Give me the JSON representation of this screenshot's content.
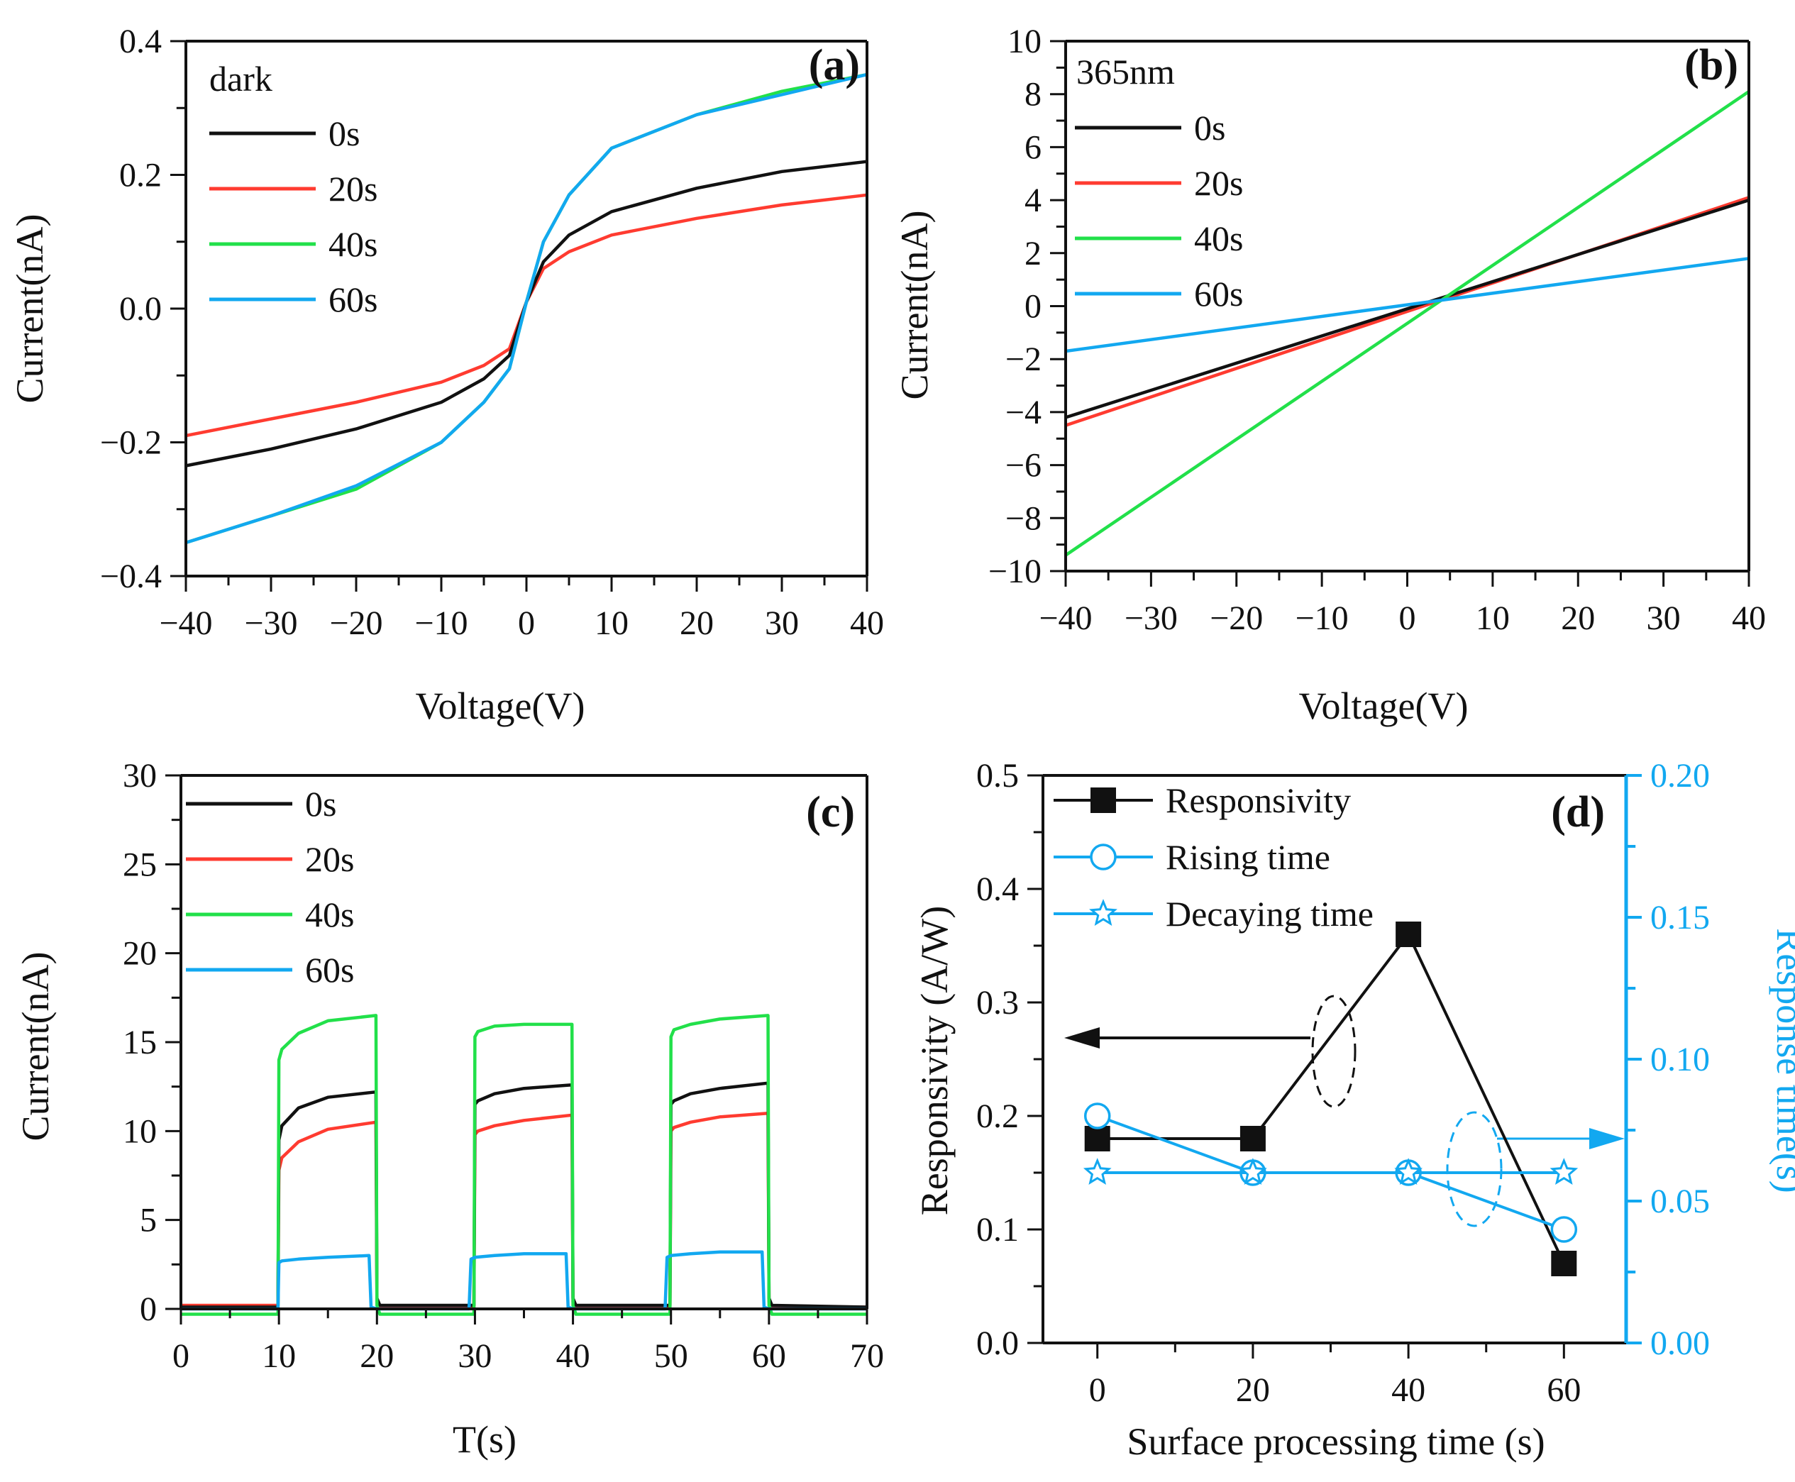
{
  "colors": {
    "0s": "#111111",
    "20s": "#ff3b30",
    "40s": "#22e04a",
    "60s": "#12a8f0",
    "axis": "#111111",
    "right_axis": "#12a8f0"
  },
  "chart_data": [
    {
      "id": "a",
      "type": "line",
      "panel_label": "(a)",
      "annotation": "dark",
      "xlabel": "Voltage(V)",
      "ylabel": "Current(nA)",
      "xlim": [
        -40,
        40
      ],
      "ylim": [
        -0.4,
        0.4
      ],
      "xticks": [
        -40,
        -30,
        -20,
        -10,
        0,
        10,
        20,
        30,
        40
      ],
      "yticks": [
        -0.4,
        -0.2,
        0.0,
        0.2,
        0.4
      ],
      "xtick_labels": [
        "−40",
        "−30",
        "−20",
        "−10",
        "0",
        "10",
        "20",
        "30",
        "40"
      ],
      "ytick_labels": [
        "−0.4",
        "−0.2",
        "0.0",
        "0.2",
        "0.4"
      ],
      "legend": [
        "0s",
        "20s",
        "40s",
        "60s"
      ],
      "series": [
        {
          "name": "0s",
          "x": [
            -40,
            -30,
            -20,
            -10,
            -5,
            -2,
            0,
            2,
            5,
            10,
            20,
            30,
            40
          ],
          "y": [
            -0.235,
            -0.21,
            -0.18,
            -0.14,
            -0.105,
            -0.07,
            0.01,
            0.07,
            0.11,
            0.145,
            0.18,
            0.205,
            0.22
          ]
        },
        {
          "name": "20s",
          "x": [
            -40,
            -30,
            -20,
            -10,
            -5,
            -2,
            0,
            2,
            5,
            10,
            20,
            30,
            40
          ],
          "y": [
            -0.19,
            -0.165,
            -0.14,
            -0.11,
            -0.085,
            -0.06,
            0.01,
            0.06,
            0.085,
            0.11,
            0.135,
            0.155,
            0.17
          ]
        },
        {
          "name": "40s",
          "x": [
            -40,
            -30,
            -20,
            -10,
            -5,
            -2,
            0,
            2,
            5,
            10,
            20,
            30,
            40
          ],
          "y": [
            -0.35,
            -0.31,
            -0.27,
            -0.2,
            -0.14,
            -0.09,
            0.01,
            0.1,
            0.17,
            0.24,
            0.29,
            0.325,
            0.35
          ]
        },
        {
          "name": "60s",
          "x": [
            -40,
            -30,
            -20,
            -10,
            -5,
            -2,
            0,
            2,
            5,
            10,
            20,
            30,
            40
          ],
          "y": [
            -0.35,
            -0.31,
            -0.265,
            -0.2,
            -0.14,
            -0.09,
            0.01,
            0.1,
            0.17,
            0.24,
            0.29,
            0.32,
            0.35
          ]
        }
      ]
    },
    {
      "id": "b",
      "type": "line",
      "panel_label": "(b)",
      "annotation": "365nm",
      "xlabel": "Voltage(V)",
      "ylabel": "Current(nA)",
      "xlim": [
        -40,
        40
      ],
      "ylim": [
        -10,
        10
      ],
      "xticks": [
        -40,
        -30,
        -20,
        -10,
        0,
        10,
        20,
        30,
        40
      ],
      "yticks": [
        -10,
        -8,
        -6,
        -4,
        -2,
        0,
        2,
        4,
        6,
        8,
        10
      ],
      "xtick_labels": [
        "−40",
        "−30",
        "−20",
        "−10",
        "0",
        "10",
        "20",
        "30",
        "40"
      ],
      "ytick_labels": [
        "−10",
        "−8",
        "−6",
        "−4",
        "−2",
        "0",
        "2",
        "4",
        "6",
        "8",
        "10"
      ],
      "legend": [
        "0s",
        "20s",
        "40s",
        "60s"
      ],
      "series": [
        {
          "name": "0s",
          "x": [
            -40,
            40
          ],
          "y": [
            -4.2,
            4.0
          ]
        },
        {
          "name": "20s",
          "x": [
            -40,
            40
          ],
          "y": [
            -4.5,
            4.1
          ]
        },
        {
          "name": "40s",
          "x": [
            -40,
            40
          ],
          "y": [
            -9.4,
            8.1
          ]
        },
        {
          "name": "60s",
          "x": [
            -40,
            40
          ],
          "y": [
            -1.7,
            1.8
          ]
        }
      ]
    },
    {
      "id": "c",
      "type": "line",
      "panel_label": "(c)",
      "xlabel": "T(s)",
      "ylabel": "Current(nA)",
      "xlim": [
        0,
        70
      ],
      "ylim": [
        0,
        30
      ],
      "xticks": [
        0,
        10,
        20,
        30,
        40,
        50,
        60,
        70
      ],
      "yticks": [
        0,
        5,
        10,
        15,
        20,
        25,
        30
      ],
      "xtick_labels": [
        "0",
        "10",
        "20",
        "30",
        "40",
        "50",
        "60",
        "70"
      ],
      "ytick_labels": [
        "0",
        "5",
        "10",
        "15",
        "20",
        "25",
        "30"
      ],
      "legend": [
        "0s",
        "20s",
        "40s",
        "60s"
      ],
      "series": [
        {
          "name": "0s",
          "x": [
            0,
            9.9,
            10,
            10.3,
            12,
            15,
            19.9,
            20,
            20.3,
            29.9,
            30,
            30.3,
            32,
            35,
            39.9,
            40,
            40.3,
            49.9,
            50,
            50.3,
            52,
            55,
            59.9,
            60,
            60.3,
            70
          ],
          "y": [
            0.1,
            0.1,
            9.5,
            10.3,
            11.3,
            11.9,
            12.2,
            0.6,
            0.2,
            0.2,
            11.5,
            11.7,
            12.1,
            12.4,
            12.6,
            0.6,
            0.2,
            0.2,
            11.5,
            11.7,
            12.1,
            12.4,
            12.7,
            0.6,
            0.2,
            0.1
          ]
        },
        {
          "name": "20s",
          "x": [
            0,
            9.9,
            10,
            10.3,
            12,
            15,
            19.9,
            20,
            20.3,
            29.9,
            30,
            30.3,
            32,
            35,
            39.9,
            40,
            40.3,
            49.9,
            50,
            50.3,
            52,
            55,
            59.9,
            60,
            60.3,
            70
          ],
          "y": [
            0.2,
            0.2,
            7.8,
            8.5,
            9.4,
            10.1,
            10.5,
            0.4,
            0.1,
            0.1,
            9.8,
            10.0,
            10.3,
            10.6,
            10.9,
            0.4,
            0.1,
            0.1,
            10.0,
            10.2,
            10.5,
            10.8,
            11.0,
            0.4,
            0.1,
            0.1
          ]
        },
        {
          "name": "40s",
          "x": [
            0,
            9.9,
            10,
            10.3,
            12,
            15,
            19.9,
            20,
            20.3,
            29.9,
            30,
            30.3,
            32,
            35,
            39.9,
            40,
            40.3,
            49.9,
            50,
            50.3,
            52,
            55,
            59.9,
            60,
            60.3,
            70
          ],
          "y": [
            -0.3,
            -0.3,
            14.0,
            14.6,
            15.5,
            16.2,
            16.5,
            0.2,
            -0.3,
            -0.3,
            15.3,
            15.6,
            15.9,
            16.0,
            16.0,
            0.2,
            -0.3,
            -0.3,
            15.3,
            15.7,
            16.0,
            16.3,
            16.5,
            0.2,
            -0.3,
            -0.3
          ]
        },
        {
          "name": "60s",
          "x": [
            0,
            9.9,
            10,
            10.3,
            12,
            15,
            19.2,
            19.4,
            20,
            29.4,
            29.6,
            30,
            32,
            35,
            39.3,
            39.5,
            40,
            49.4,
            49.6,
            50,
            52,
            55,
            59.3,
            59.5,
            60,
            70
          ],
          "y": [
            0.0,
            0.0,
            2.6,
            2.7,
            2.8,
            2.9,
            3.0,
            0.1,
            0.0,
            0.0,
            2.8,
            2.9,
            3.0,
            3.1,
            3.1,
            0.1,
            0.0,
            0.0,
            2.9,
            3.0,
            3.1,
            3.2,
            3.2,
            0.1,
            0.0,
            0.0
          ]
        }
      ]
    },
    {
      "id": "d",
      "type": "line",
      "panel_label": "(d)",
      "xlabel": "Surface processing time (s)",
      "ylabel": "Responsivity (A/W)",
      "y2label": "Response time(s)",
      "xlim": [
        -7,
        68
      ],
      "ylim": [
        0,
        0.5
      ],
      "y2lim": [
        0,
        0.2
      ],
      "xticks": [
        0,
        20,
        40,
        60
      ],
      "yticks": [
        0.0,
        0.1,
        0.2,
        0.3,
        0.4,
        0.5
      ],
      "y2ticks": [
        0.0,
        0.05,
        0.1,
        0.15,
        0.2
      ],
      "xtick_labels": [
        "0",
        "20",
        "40",
        "60"
      ],
      "ytick_labels": [
        "0.0",
        "0.1",
        "0.2",
        "0.3",
        "0.4",
        "0.5"
      ],
      "y2tick_labels": [
        "0.00",
        "0.05",
        "0.10",
        "0.15",
        "0.20"
      ],
      "legend": [
        "Responsivity",
        "Rising time",
        "Decaying time"
      ],
      "series": [
        {
          "name": "Responsivity",
          "axis": "left",
          "marker": "square",
          "x": [
            0,
            20,
            40,
            60
          ],
          "y": [
            0.18,
            0.18,
            0.36,
            0.07
          ]
        },
        {
          "name": "Rising time",
          "axis": "right",
          "marker": "circle",
          "x": [
            0,
            20,
            40,
            60
          ],
          "y": [
            0.08,
            0.06,
            0.06,
            0.04
          ]
        },
        {
          "name": "Decaying time",
          "axis": "right",
          "marker": "star",
          "x": [
            0,
            20,
            40,
            60
          ],
          "y": [
            0.06,
            0.06,
            0.06,
            0.06
          ]
        }
      ]
    }
  ]
}
